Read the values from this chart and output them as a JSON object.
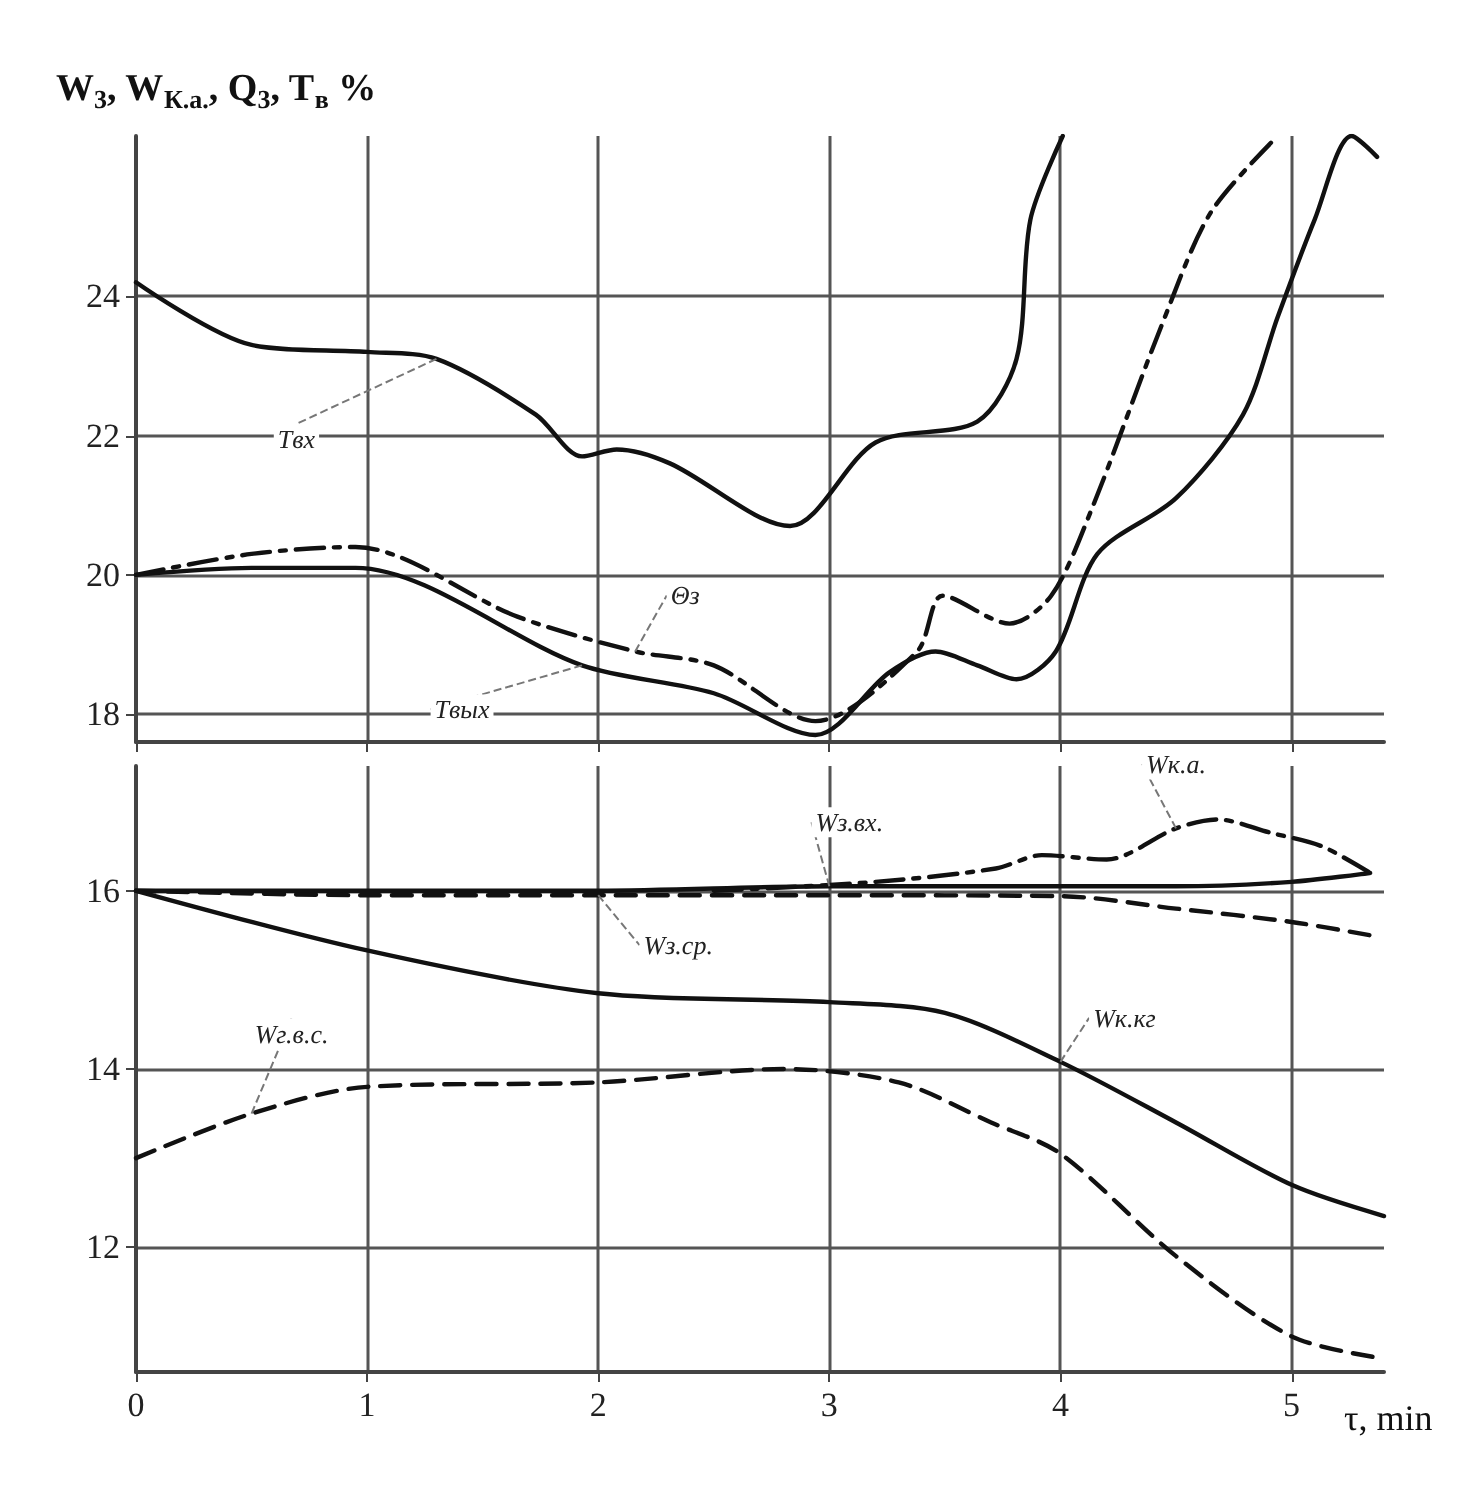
{
  "chart_data": [
    {
      "type": "line",
      "ylabel": "W$_{3}$, W$_{К.а.}$, Q$_{3}$, T$_{в}$ %",
      "xlim": [
        0,
        5.4
      ],
      "xticks": [
        0,
        1,
        2,
        3,
        4,
        5
      ],
      "ylim": [
        17.6,
        26.3
      ],
      "yticks": [
        18,
        20,
        22,
        24
      ],
      "grid": true,
      "legend": false,
      "marker": "none",
      "tick_labels": "y",
      "series": [
        {
          "name": "Tвх",
          "color": "#111111",
          "line_style": "solid",
          "x": [
            0,
            0.5,
            1.0,
            1.3,
            1.73,
            1.93,
            2.08,
            2.31,
            2.83,
            3.2,
            3.64,
            3.81,
            3.87,
            4.01
          ],
          "values": [
            24.2,
            23.3,
            23.2,
            23.1,
            22.3,
            21.7,
            21.8,
            21.6,
            20.7,
            21.9,
            22.2,
            23.1,
            25.1,
            26.3
          ]
        },
        {
          "name": "Θз",
          "color": "#111111",
          "line_style": "dashdot",
          "x": [
            0,
            0.5,
            0.95,
            1.65,
            2.16,
            2.5,
            2.94,
            3.38,
            3.49,
            3.78,
            3.96,
            4.13,
            4.44,
            4.65,
            4.94
          ],
          "values": [
            20.0,
            20.3,
            20.4,
            19.4,
            18.9,
            18.7,
            17.9,
            18.9,
            19.7,
            19.3,
            19.7,
            20.9,
            23.6,
            25.2,
            26.3
          ]
        },
        {
          "name": "Tвых",
          "color": "#111111",
          "line_style": "solid",
          "x": [
            0,
            0.5,
            0.95,
            1.93,
            2.5,
            2.94,
            3.26,
            3.46,
            3.64,
            3.81,
            3.98,
            4.16,
            4.5,
            4.79,
            4.94,
            5.1,
            5.26,
            5.37
          ],
          "values": [
            20.0,
            20.1,
            20.1,
            18.7,
            18.3,
            17.7,
            18.6,
            18.9,
            18.7,
            18.5,
            18.9,
            20.3,
            21.1,
            22.3,
            23.7,
            25.1,
            26.3,
            26.0
          ]
        }
      ]
    },
    {
      "type": "line",
      "xlabel": "τ, min",
      "xlim": [
        0,
        5.4
      ],
      "xticks": [
        0,
        1,
        2,
        3,
        4,
        5
      ],
      "ylim": [
        10.6,
        17.4
      ],
      "yticks": [
        12,
        14,
        16
      ],
      "grid": true,
      "legend": false,
      "marker": "none",
      "series": [
        {
          "name": "Wз.вх.",
          "color": "#111111",
          "line_style": "solid",
          "x": [
            0,
            1,
            2,
            3,
            4,
            4.5,
            5,
            5.34
          ],
          "values": [
            16.0,
            16.0,
            16.0,
            16.05,
            16.05,
            16.05,
            16.1,
            16.2
          ]
        },
        {
          "name": "Wк.а.",
          "color": "#111111",
          "line_style": "dashdot",
          "x": [
            2.5,
            3.2,
            3.72,
            3.92,
            4.2,
            4.5,
            4.68,
            4.91,
            5.13,
            5.34
          ],
          "values": [
            16.0,
            16.1,
            16.25,
            16.4,
            16.35,
            16.7,
            16.8,
            16.65,
            16.5,
            16.2
          ]
        },
        {
          "name": "Wз.ср.",
          "color": "#111111",
          "line_style": "dashed",
          "x": [
            0,
            1,
            2,
            3,
            4,
            4.5,
            5,
            5.34
          ],
          "values": [
            16.0,
            15.95,
            15.95,
            15.95,
            15.94,
            15.8,
            15.65,
            15.5
          ]
        },
        {
          "name": "Wк.кг",
          "color": "#111111",
          "line_style": "solid",
          "x": [
            0,
            1,
            2,
            3,
            3.5,
            4,
            4.5,
            5,
            5.4
          ],
          "values": [
            16.0,
            15.33,
            14.85,
            14.75,
            14.63,
            14.08,
            13.4,
            12.7,
            12.35
          ]
        },
        {
          "name": "Wг.в.с.",
          "color": "#111111",
          "line_style": "dashed",
          "x": [
            0,
            0.5,
            1,
            2,
            2.8,
            3.3,
            3.7,
            4,
            4.5,
            5,
            5.4
          ],
          "values": [
            13.0,
            13.5,
            13.8,
            13.85,
            14.0,
            13.85,
            13.4,
            13.05,
            11.9,
            11.0,
            10.75
          ]
        }
      ]
    }
  ]
}
